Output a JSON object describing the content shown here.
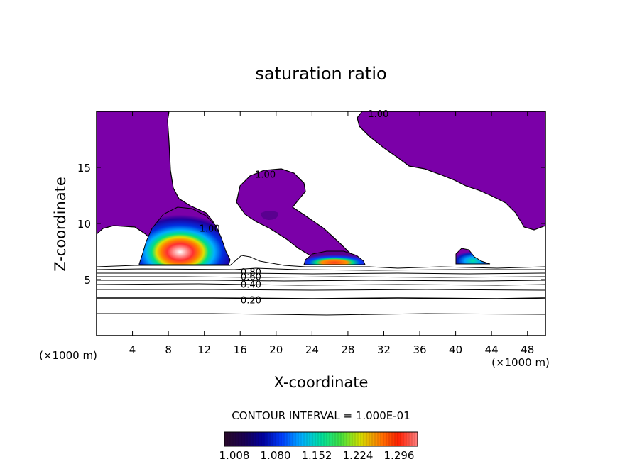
{
  "chart_data": {
    "type": "heatmap",
    "title": "saturation ratio",
    "xlabel": "X-coordinate",
    "ylabel": "Z-coordinate",
    "x_unit_left": "(×1000 m)",
    "x_unit_right": "(×1000 m)",
    "xlim": [
      0,
      50
    ],
    "ylim": [
      0,
      20
    ],
    "x_ticks": [
      4,
      8,
      12,
      16,
      20,
      24,
      28,
      32,
      36,
      40,
      44,
      48
    ],
    "y_ticks": [
      5,
      10,
      15
    ],
    "contour_labels": [
      {
        "text": "1.00",
        "x": 31.4,
        "y": 19.8
      },
      {
        "text": "1.00",
        "x": 18.8,
        "y": 14.4
      },
      {
        "text": "1.00",
        "x": 12.6,
        "y": 9.6
      },
      {
        "text": "0.80",
        "x": 17.2,
        "y": 5.7
      },
      {
        "text": "0.60",
        "x": 17.2,
        "y": 5.3
      },
      {
        "text": "0.40",
        "x": 17.2,
        "y": 4.6
      },
      {
        "text": "0.20",
        "x": 17.2,
        "y": 3.2
      }
    ],
    "contour_interval_text": "CONTOUR INTERVAL = 1.000E-01",
    "colorbar": {
      "tick_labels": [
        "1.008",
        "1.080",
        "1.152",
        "1.224",
        "1.296"
      ],
      "colors": [
        "#2a0a2a",
        "#1a0050",
        "#0000a0",
        "#0040ff",
        "#00b0ff",
        "#00e0a0",
        "#40e040",
        "#d0e000",
        "#ff8000",
        "#ff2000",
        "#ff8080"
      ]
    },
    "colors": {
      "purple": "#7b00a8",
      "purple_dark": "#5a0090",
      "blue": "#0020d0",
      "cyan": "#00a0ff",
      "green": "#00d060",
      "yellow": "#e8e000",
      "orange": "#ff6000",
      "red": "#e00000",
      "contour": "#000000"
    }
  }
}
